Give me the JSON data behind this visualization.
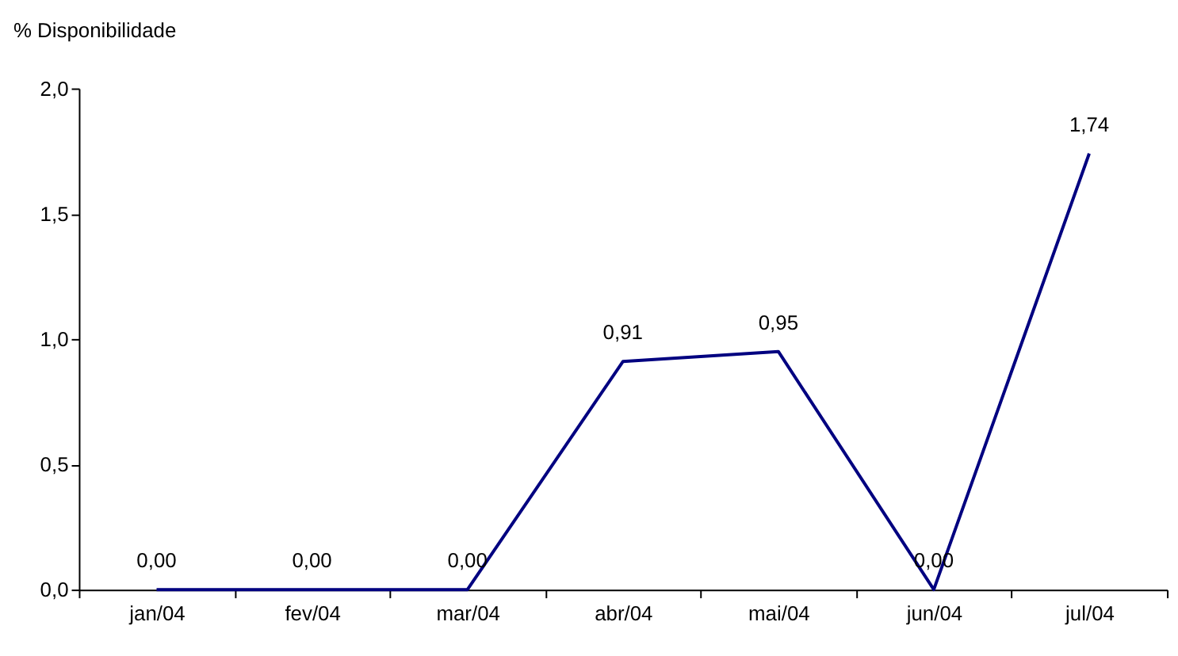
{
  "chart_data": {
    "type": "line",
    "ylabel": "% Disponibilidade",
    "categories": [
      "jan/04",
      "fev/04",
      "mar/04",
      "abr/04",
      "mai/04",
      "jun/04",
      "jul/04"
    ],
    "series": [
      {
        "color": "#000080",
        "values": [
          0.0,
          0.0,
          0.0,
          0.91,
          0.95,
          0.0,
          1.74
        ],
        "value_labels": [
          "0,00",
          "0,00",
          "0,00",
          "0,91",
          "0,95",
          "0,00",
          "1,74"
        ]
      }
    ],
    "ylim": [
      0,
      2
    ],
    "yticks": [
      {
        "value": 0,
        "label": "0,0"
      },
      {
        "value": 0.5,
        "label": "0,5"
      },
      {
        "value": 1,
        "label": "1,0"
      },
      {
        "value": 1.5,
        "label": "1,5"
      },
      {
        "value": 2,
        "label": "2,0"
      }
    ],
    "grid": false,
    "marker": "none",
    "line_style": "solid"
  }
}
